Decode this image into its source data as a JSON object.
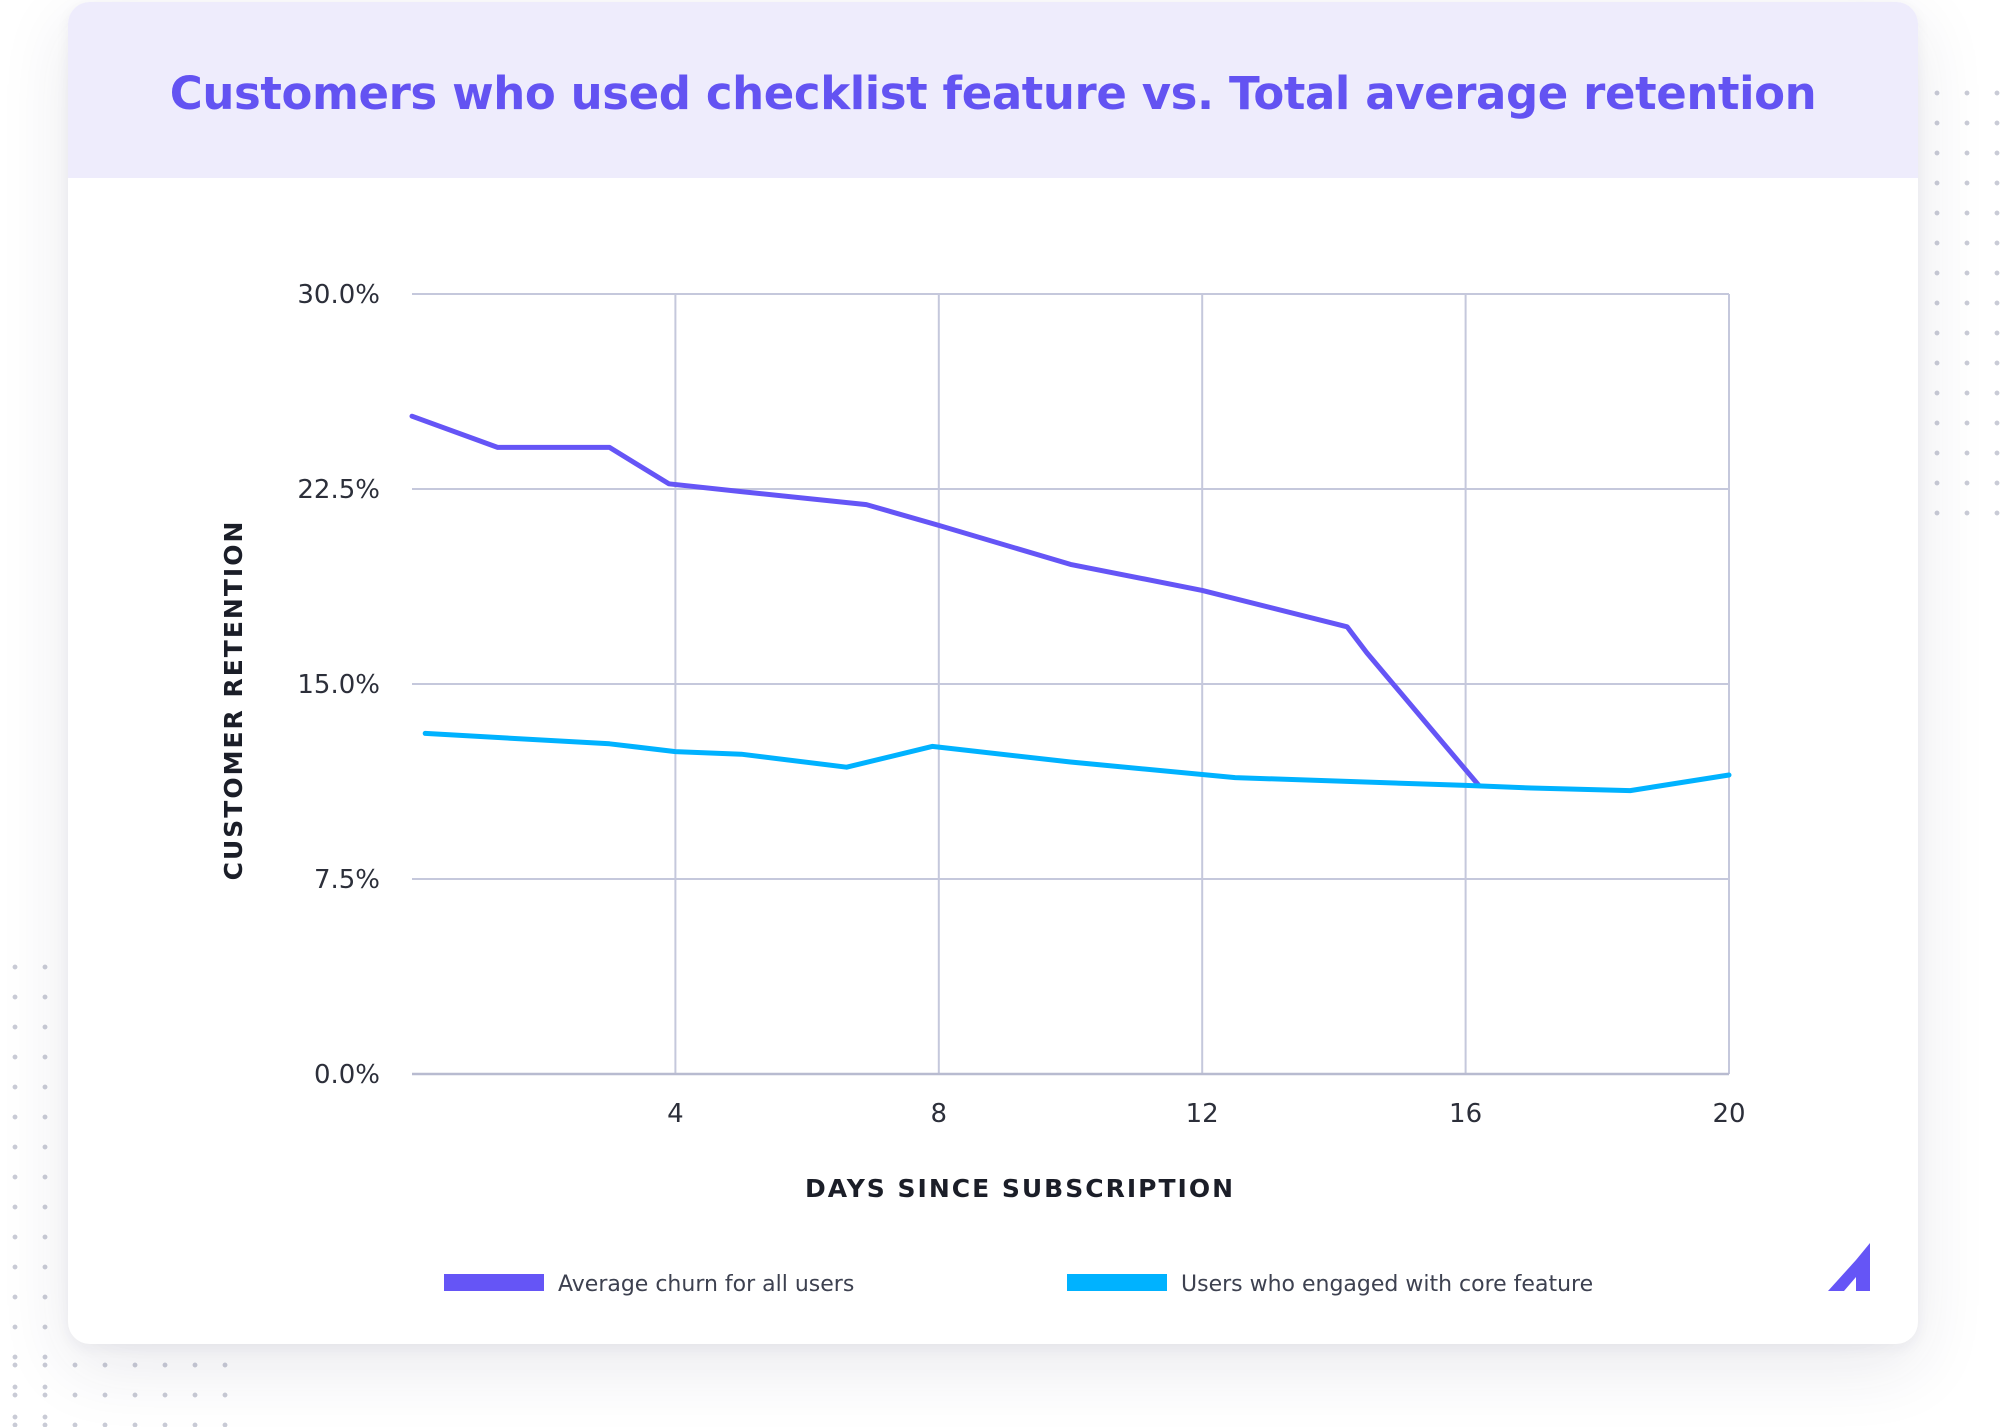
{
  "chart_data": {
    "type": "line",
    "title": "Customers who used checklist feature vs. Total average retention",
    "xlabel": "DAYS SINCE SUBSCRIPTION",
    "ylabel": "CUSTOMER RETENTION",
    "xlim": [
      0,
      20
    ],
    "ylim": [
      0,
      30
    ],
    "x_ticks": [
      4,
      8,
      12,
      16,
      20
    ],
    "x_tick_labels": [
      "4",
      "8",
      "12",
      "16",
      "20"
    ],
    "y_ticks": [
      0,
      7.5,
      15,
      22.5,
      30
    ],
    "y_tick_labels": [
      "0.0%",
      "7.5%",
      "15.0%",
      "22.5%",
      "30.0%"
    ],
    "grid": true,
    "legend_position": "bottom",
    "series": [
      {
        "name": "Average churn for all users",
        "color": "#6555f6",
        "points": [
          [
            0,
            25.3
          ],
          [
            1.3,
            24.1
          ],
          [
            3.0,
            24.1
          ],
          [
            3.9,
            22.7
          ],
          [
            5.0,
            22.4
          ],
          [
            6.9,
            21.9
          ],
          [
            8.0,
            21.1
          ],
          [
            10.0,
            19.6
          ],
          [
            12.0,
            18.6
          ],
          [
            14.2,
            17.2
          ],
          [
            14.5,
            16.2
          ],
          [
            15.4,
            13.5
          ],
          [
            16.2,
            11.1
          ]
        ]
      },
      {
        "name": "Users who engaged with core feature",
        "color": "#00b2ff",
        "points": [
          [
            0.2,
            13.1
          ],
          [
            3.0,
            12.7
          ],
          [
            4.0,
            12.4
          ],
          [
            5.0,
            12.3
          ],
          [
            6.6,
            11.8
          ],
          [
            7.9,
            12.6
          ],
          [
            10.0,
            12.0
          ],
          [
            12.5,
            11.4
          ],
          [
            16.0,
            11.1
          ],
          [
            17.0,
            11.0
          ],
          [
            18.5,
            10.9
          ],
          [
            20.0,
            11.5
          ]
        ]
      }
    ]
  }
}
